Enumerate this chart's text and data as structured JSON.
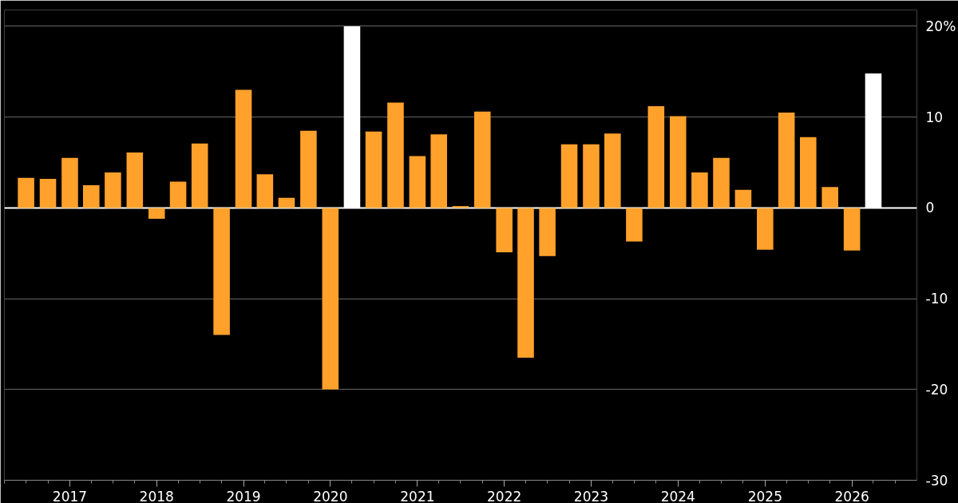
{
  "chart_data": {
    "type": "bar",
    "x": [
      "2016-07",
      "2016-10",
      "2017-01",
      "2017-04",
      "2017-07",
      "2017-10",
      "2018-01",
      "2018-04",
      "2018-07",
      "2018-10",
      "2019-01",
      "2019-04",
      "2019-07",
      "2019-10",
      "2020-01",
      "2020-04",
      "2020-07",
      "2020-10",
      "2021-01",
      "2021-04",
      "2021-07",
      "2021-10",
      "2022-01",
      "2022-04",
      "2022-07",
      "2022-10",
      "2023-01",
      "2023-04",
      "2023-07",
      "2023-10",
      "2024-01",
      "2024-04",
      "2024-07",
      "2024-10",
      "2025-01",
      "2025-04",
      "2025-07",
      "2025-10",
      "2026-01",
      "2026-04"
    ],
    "values": [
      3.3,
      3.2,
      5.5,
      2.5,
      3.9,
      6.1,
      -1.2,
      2.9,
      7.1,
      -14.0,
      13.0,
      3.7,
      1.1,
      8.5,
      -20.0,
      20.0,
      8.4,
      11.6,
      5.7,
      8.1,
      0.2,
      10.6,
      -4.9,
      -16.5,
      -5.3,
      7.0,
      7.0,
      8.2,
      -3.7,
      11.2,
      10.1,
      3.9,
      5.5,
      2.0,
      -4.6,
      10.5,
      7.8,
      2.3,
      -4.7,
      14.8
    ],
    "colors": [
      "#ffa12b",
      "#ffa12b",
      "#ffa12b",
      "#ffa12b",
      "#ffa12b",
      "#ffa12b",
      "#ffa12b",
      "#ffa12b",
      "#ffa12b",
      "#ffa12b",
      "#ffa12b",
      "#ffa12b",
      "#ffa12b",
      "#ffa12b",
      "#ffa12b",
      "#ffffff",
      "#ffa12b",
      "#ffa12b",
      "#ffa12b",
      "#ffa12b",
      "#ffa12b",
      "#ffa12b",
      "#ffa12b",
      "#ffa12b",
      "#ffa12b",
      "#ffa12b",
      "#ffa12b",
      "#ffa12b",
      "#ffa12b",
      "#ffa12b",
      "#ffa12b",
      "#ffa12b",
      "#ffa12b",
      "#ffa12b",
      "#ffa12b",
      "#ffa12b",
      "#ffa12b",
      "#ffa12b",
      "#ffa12b",
      "#ffffff"
    ],
    "xlim": [
      "2016-04",
      "2026-10"
    ],
    "xticks": [
      "2017",
      "2018",
      "2019",
      "2020",
      "2021",
      "2022",
      "2023",
      "2024",
      "2025",
      "2026",
      {
        "value": "2016-04",
        "label": null
      },
      {
        "value": "2016-07",
        "label": null
      },
      {
        "value": "2016-10",
        "label": null
      },
      {
        "value": "2017-04",
        "label": null
      },
      {
        "value": "2017-07",
        "label": null
      },
      {
        "value": "2017-10",
        "label": null
      },
      {
        "value": "2018-04",
        "label": null
      },
      {
        "value": "2018-07",
        "label": null
      },
      {
        "value": "2018-10",
        "label": null
      },
      {
        "value": "2019-04",
        "label": null
      },
      {
        "value": "2019-07",
        "label": null
      },
      {
        "value": "2019-10",
        "label": null
      },
      {
        "value": "2020-04",
        "label": null
      },
      {
        "value": "2020-07",
        "label": null
      },
      {
        "value": "2020-10",
        "label": null
      },
      {
        "value": "2021-04",
        "label": null
      },
      {
        "value": "2021-07",
        "label": null
      },
      {
        "value": "2021-10",
        "label": null
      },
      {
        "value": "2022-04",
        "label": null
      },
      {
        "value": "2022-07",
        "label": null
      },
      {
        "value": "2022-10",
        "label": null
      },
      {
        "value": "2023-04",
        "label": null
      },
      {
        "value": "2023-07",
        "label": null
      },
      {
        "value": "2023-10",
        "label": null
      },
      {
        "value": "2024-04",
        "label": null
      },
      {
        "value": "2024-07",
        "label": null
      },
      {
        "value": "2024-10",
        "label": null
      },
      {
        "value": "2025-04",
        "label": null
      },
      {
        "value": "2025-07",
        "label": null
      },
      {
        "value": "2025-10",
        "label": null
      },
      {
        "value": "2026-04",
        "label": null
      },
      {
        "value": "2026-07",
        "label": null
      }
    ],
    "ylim": [
      -30,
      21.8
    ],
    "yticks": [
      -30,
      -20,
      -10,
      0,
      10,
      {
        "value": 20,
        "label": "20%"
      }
    ],
    "ref_lines": [
      {
        "axis": "y",
        "value": 0,
        "label": null,
        "color": "#ffffff"
      }
    ],
    "grid": "y"
  }
}
